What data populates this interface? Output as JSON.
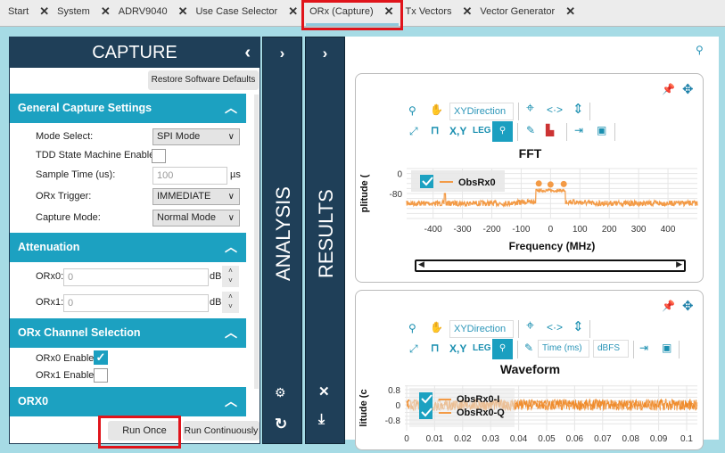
{
  "tabs": [
    {
      "label": "Start"
    },
    {
      "label": "System"
    },
    {
      "label": "ADRV9040"
    },
    {
      "label": "Use Case Selector"
    },
    {
      "label": "ORx (Capture)",
      "active": true
    },
    {
      "label": "Tx Vectors"
    },
    {
      "label": "Vector Generator"
    }
  ],
  "capture": {
    "title": "CAPTURE",
    "restore_label": "Restore Software Defaults",
    "general": {
      "title": "General Capture Settings",
      "mode_select_label": "Mode Select:",
      "mode_select_value": "SPI Mode",
      "tdd_label": "TDD State Machine Enable:",
      "tdd_checked": false,
      "sample_time_label": "Sample Time (us):",
      "sample_time_value": "100",
      "sample_time_unit": "µs",
      "trigger_label": "ORx Trigger:",
      "trigger_value": "IMMEDIATE",
      "capture_mode_label": "Capture Mode:",
      "capture_mode_value": "Normal Mode"
    },
    "attenuation": {
      "title": "Attenuation",
      "orx0_label": "ORx0:",
      "orx0_value": "0",
      "orx1_label": "ORx1:",
      "orx1_value": "0",
      "unit": "dB"
    },
    "channel": {
      "title": "ORx Channel Selection",
      "orx0_label": "ORx0 Enable:",
      "orx0_checked": true,
      "orx1_label": "ORx1 Enable:",
      "orx1_checked": false
    },
    "orx0_section": {
      "title": "ORX0"
    },
    "run_once_label": "Run Once",
    "run_continuously_label": "Run Continuously"
  },
  "analysis": {
    "title": "ANALYSIS"
  },
  "results": {
    "title": "RESULTS"
  },
  "toolbar": {
    "xy_direction": "XYDirection",
    "xy_label": "X,Y",
    "leg_label": "LEG",
    "time_unit": "Time (ms)",
    "amp_unit": "dBFS"
  },
  "colors": {
    "accent": "#1ca1c1",
    "header": "#1f3f58",
    "series": "#f39a45",
    "highlight": "#e0141b"
  },
  "chart_data": [
    {
      "type": "line",
      "title": "FFT",
      "xlabel": "Frequency (MHz)",
      "ylabel": "plitude (",
      "xlim": [
        -490,
        500
      ],
      "ylim": [
        -180,
        20
      ],
      "xticks": [
        "-400",
        "-300",
        "-200",
        "-100",
        "0",
        "100",
        "200",
        "300",
        "400"
      ],
      "yticks": [
        "0",
        "-80"
      ],
      "grid": true,
      "legend_position": "top-left",
      "series": [
        {
          "name": "ObsRx0",
          "noise_floor_dB": -115,
          "band_MHz": [
            -50,
            50
          ],
          "band_level_dB": -68,
          "peaks": [
            {
              "x": -40,
              "y": -40
            },
            {
              "x": 0,
              "y": -44
            },
            {
              "x": 45,
              "y": -42
            }
          ],
          "spur": {
            "x": -360,
            "y": -80
          }
        }
      ]
    },
    {
      "type": "line",
      "title": "Waveform",
      "xlabel": "",
      "ylabel": "litude (c",
      "xlim": [
        0,
        0.1
      ],
      "ylim": [
        -1,
        1
      ],
      "xticks": [
        "0",
        "0.01",
        "0.02",
        "0.03",
        "0.04",
        "0.05",
        "0.06",
        "0.07",
        "0.08",
        "0.09",
        "0.1"
      ],
      "yticks": [
        "0.8",
        "0",
        "-0.8"
      ],
      "grid": true,
      "legend_position": "top-left",
      "series": [
        {
          "name": "ObsRx0-I",
          "amplitude": 0.3
        },
        {
          "name": "ObsRx0-Q",
          "amplitude": 0.3
        }
      ]
    }
  ]
}
